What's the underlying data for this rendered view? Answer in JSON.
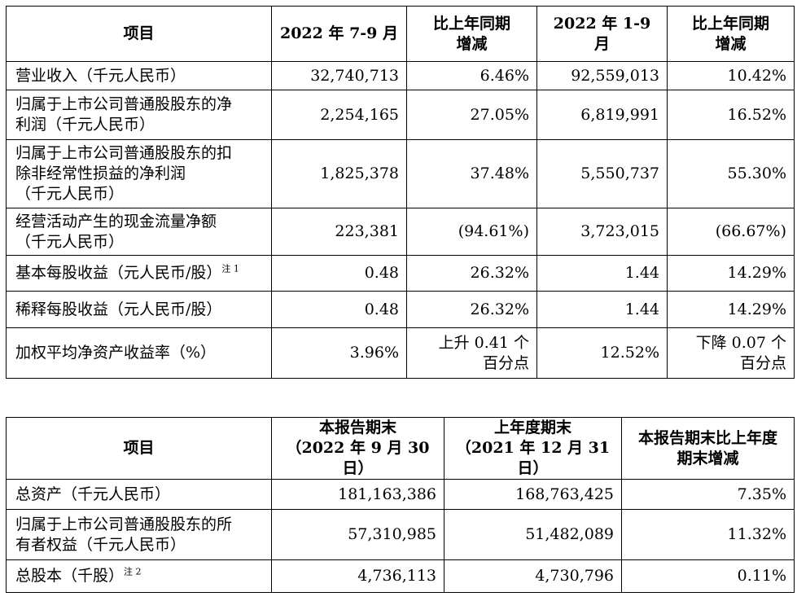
{
  "table1": {
    "headers": [
      "项目",
      "2022 年 7-9 月",
      "比上年同期 增减",
      "2022 年 1-9 月",
      "比上年同期 增减"
    ],
    "header_lines": [
      [
        "项目"
      ],
      [
        "2022 年 7-9 月"
      ],
      [
        "比上年同期",
        "增减"
      ],
      [
        "2022 年 1-9 月"
      ],
      [
        "比上年同期",
        "增减"
      ]
    ],
    "rows": [
      {
        "label_lines": [
          "营业收入（千元人民币）"
        ],
        "note": "",
        "q3": "32,740,713",
        "q3_change": [
          "6.46%"
        ],
        "ytd": "92,559,013",
        "ytd_change": [
          "10.42%"
        ]
      },
      {
        "label_lines": [
          "归属于上市公司普通股股东的净",
          "利润（千元人民币）"
        ],
        "note": "",
        "q3": "2,254,165",
        "q3_change": [
          "27.05%"
        ],
        "ytd": "6,819,991",
        "ytd_change": [
          "16.52%"
        ]
      },
      {
        "label_lines": [
          "归属于上市公司普通股股东的扣",
          "除非经常性损益的净利润",
          "（千元人民币）"
        ],
        "note": "",
        "q3": "1,825,378",
        "q3_change": [
          "37.48%"
        ],
        "ytd": "5,550,737",
        "ytd_change": [
          "55.30%"
        ]
      },
      {
        "label_lines": [
          "经营活动产生的现金流量净额",
          "（千元人民币）"
        ],
        "note": "",
        "q3": "223,381",
        "q3_change": [
          "(94.61%)"
        ],
        "ytd": "3,723,015",
        "ytd_change": [
          "(66.67%)"
        ]
      },
      {
        "label_lines": [
          "基本每股收益（元人民币/股）"
        ],
        "note": "注 1",
        "q3": "0.48",
        "q3_change": [
          "26.32%"
        ],
        "ytd": "1.44",
        "ytd_change": [
          "14.29%"
        ]
      },
      {
        "label_lines": [
          "稀释每股收益（元人民币/股）"
        ],
        "note": "",
        "q3": "0.48",
        "q3_change": [
          "26.32%"
        ],
        "ytd": "1.44",
        "ytd_change": [
          "14.29%"
        ]
      },
      {
        "label_lines": [
          "加权平均净资产收益率（%）"
        ],
        "note": "",
        "q3": "3.96%",
        "q3_change": [
          "上升 0.41 个",
          "百分点"
        ],
        "ytd": "12.52%",
        "ytd_change": [
          "下降 0.07 个",
          "百分点"
        ]
      }
    ]
  },
  "table2": {
    "header_lines": [
      [
        "项目"
      ],
      [
        "本报告期末",
        "（2022 年 9 月 30 日）"
      ],
      [
        "上年度期末",
        "（2021 年 12 月 31 日）"
      ],
      [
        "本报告期末比上年度",
        "期末增减"
      ]
    ],
    "rows": [
      {
        "label_lines": [
          "总资产（千元人民币）"
        ],
        "note": "",
        "current": "181,163,386",
        "prior": "168,763,425",
        "change": "7.35%"
      },
      {
        "label_lines": [
          "归属于上市公司普通股股东的所",
          "有者权益（千元人民币）"
        ],
        "note": "",
        "current": "57,310,985",
        "prior": "51,482,089",
        "change": "11.32%"
      },
      {
        "label_lines": [
          "总股本（千股）"
        ],
        "note": "注 2",
        "current": "4,736,113",
        "prior": "4,730,796",
        "change": "0.11%"
      }
    ]
  }
}
